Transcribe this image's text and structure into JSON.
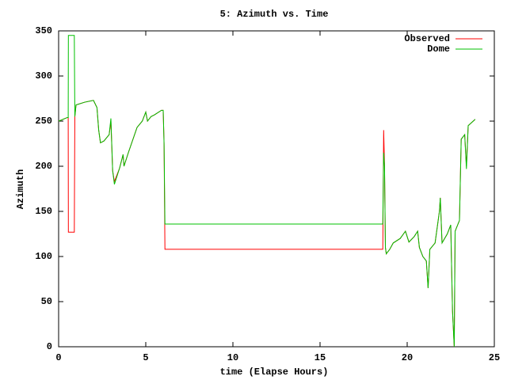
{
  "chart_data": {
    "type": "line",
    "title": "5: Azimuth vs. Time",
    "x_label": "time (Elapse Hours)",
    "y_label": "Azimuth",
    "xlim": [
      0,
      25
    ],
    "xticks": [
      0,
      5,
      10,
      15,
      20,
      25
    ],
    "ylim": [
      0,
      350
    ],
    "yticks": [
      0,
      50,
      100,
      150,
      200,
      250,
      300,
      350
    ],
    "legend": "top-right",
    "grid": false,
    "x": [
      0,
      0.5,
      0.55,
      0.56,
      0.9,
      0.93,
      1.0,
      1.5,
      2.0,
      2.2,
      2.3,
      2.4,
      2.6,
      2.9,
      3.0,
      3.1,
      3.2,
      3.5,
      3.7,
      3.75,
      4.0,
      4.5,
      4.8,
      5.0,
      5.1,
      5.3,
      5.5,
      5.9,
      6.0,
      6.05,
      6.1,
      18.6,
      18.65,
      18.7,
      18.75,
      18.8,
      19.0,
      19.2,
      19.6,
      19.9,
      20.1,
      20.4,
      20.6,
      20.7,
      20.9,
      21.1,
      21.2,
      21.3,
      21.6,
      21.85,
      21.9,
      22.0,
      22.3,
      22.5,
      22.6,
      22.7,
      22.75,
      23.0,
      23.1,
      23.3,
      23.4,
      23.5,
      23.9
    ],
    "series": [
      {
        "name": "Observed",
        "color": "#ff0000",
        "values": [
          250,
          254,
          254,
          127,
          127,
          255,
          268,
          271,
          273,
          265,
          240,
          226,
          228,
          235,
          250,
          195,
          183,
          198,
          213,
          200,
          215,
          243,
          250,
          260,
          250,
          255,
          257,
          262,
          262,
          225,
          108,
          108,
          240,
          200,
          110,
          103,
          108,
          115,
          120,
          128,
          116,
          122,
          128,
          110,
          100,
          95,
          65,
          108,
          115,
          150,
          165,
          115,
          125,
          135,
          40,
          0,
          128,
          140,
          230,
          235,
          200,
          245,
          252
        ]
      },
      {
        "name": "Dome",
        "color": "#00c000",
        "values": [
          250,
          254,
          254,
          345,
          345,
          255,
          268,
          271,
          273,
          265,
          240,
          226,
          228,
          235,
          253,
          195,
          180,
          198,
          213,
          200,
          215,
          243,
          250,
          260,
          250,
          255,
          257,
          262,
          262,
          225,
          136,
          136,
          215,
          200,
          110,
          103,
          108,
          115,
          120,
          128,
          116,
          122,
          128,
          110,
          100,
          95,
          65,
          108,
          115,
          150,
          165,
          115,
          125,
          135,
          40,
          0,
          128,
          140,
          230,
          235,
          197,
          245,
          252
        ]
      }
    ]
  }
}
